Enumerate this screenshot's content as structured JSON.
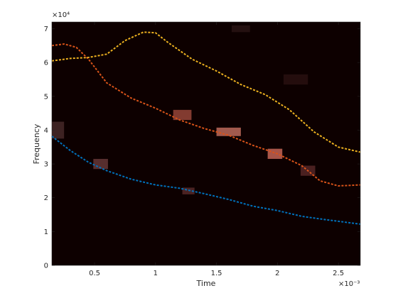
{
  "chart_data": {
    "type": "spectrogram",
    "title": "",
    "xlabel": "Time",
    "ylabel": "Frequency",
    "x_exponent_label": "×10⁻³",
    "y_exponent_label": "×10⁴",
    "xlim": [
      0.15,
      2.68
    ],
    "ylim": [
      0,
      7.2
    ],
    "x_ticks": [
      0.5,
      1,
      1.5,
      2,
      2.5
    ],
    "x_tick_labels": [
      "0.5",
      "1",
      "1.5",
      "2",
      "2.5"
    ],
    "y_ticks": [
      0,
      1,
      2,
      3,
      4,
      5,
      6,
      7
    ],
    "y_tick_labels": [
      "0",
      "1",
      "2",
      "3",
      "4",
      "5",
      "6",
      "7"
    ],
    "background_color": "#0d0000",
    "legend": "none",
    "grid": false,
    "series": [
      {
        "color": "#0072bd",
        "style": "dashed",
        "x": [
          0.15,
          0.3,
          0.45,
          0.6,
          0.8,
          1.0,
          1.2,
          1.4,
          1.6,
          1.8,
          2.0,
          2.2,
          2.4,
          2.55,
          2.68
        ],
        "y": [
          3.82,
          3.4,
          3.05,
          2.8,
          2.55,
          2.38,
          2.28,
          2.12,
          1.95,
          1.75,
          1.62,
          1.45,
          1.35,
          1.28,
          1.22
        ]
      },
      {
        "color": "#d95319",
        "style": "dashed",
        "x": [
          0.15,
          0.25,
          0.35,
          0.45,
          0.6,
          0.8,
          1.0,
          1.2,
          1.4,
          1.6,
          1.8,
          2.0,
          2.2,
          2.35,
          2.5,
          2.68
        ],
        "y": [
          6.5,
          6.55,
          6.45,
          6.1,
          5.4,
          4.95,
          4.65,
          4.3,
          4.05,
          3.85,
          3.55,
          3.3,
          2.95,
          2.5,
          2.35,
          2.38
        ]
      },
      {
        "color": "#edb120",
        "style": "dashed",
        "x": [
          0.15,
          0.3,
          0.45,
          0.6,
          0.75,
          0.9,
          1.0,
          1.1,
          1.3,
          1.5,
          1.7,
          1.9,
          2.1,
          2.3,
          2.5,
          2.68
        ],
        "y": [
          6.05,
          6.12,
          6.15,
          6.25,
          6.65,
          6.9,
          6.88,
          6.6,
          6.1,
          5.75,
          5.35,
          5.05,
          4.6,
          3.95,
          3.5,
          3.35
        ]
      }
    ],
    "heatmap_blobs": [
      {
        "x": 0.55,
        "y": 3.0,
        "w": 0.12,
        "h": 0.3,
        "color": "#6a3a3a"
      },
      {
        "x": 1.22,
        "y": 4.45,
        "w": 0.15,
        "h": 0.3,
        "color": "#a04a3c"
      },
      {
        "x": 1.6,
        "y": 3.95,
        "w": 0.2,
        "h": 0.25,
        "color": "#c87060"
      },
      {
        "x": 1.98,
        "y": 3.3,
        "w": 0.12,
        "h": 0.3,
        "color": "#d06a5a"
      },
      {
        "x": 1.27,
        "y": 2.2,
        "w": 0.1,
        "h": 0.2,
        "color": "#5a2a2a"
      },
      {
        "x": 0.2,
        "y": 4.0,
        "w": 0.1,
        "h": 0.5,
        "color": "#4a2a2a"
      },
      {
        "x": 2.25,
        "y": 2.8,
        "w": 0.12,
        "h": 0.3,
        "color": "#5a2828"
      },
      {
        "x": 1.7,
        "y": 7.0,
        "w": 0.15,
        "h": 0.2,
        "color": "#2a1414"
      },
      {
        "x": 2.15,
        "y": 5.5,
        "w": 0.2,
        "h": 0.3,
        "color": "#2a1010"
      }
    ]
  }
}
